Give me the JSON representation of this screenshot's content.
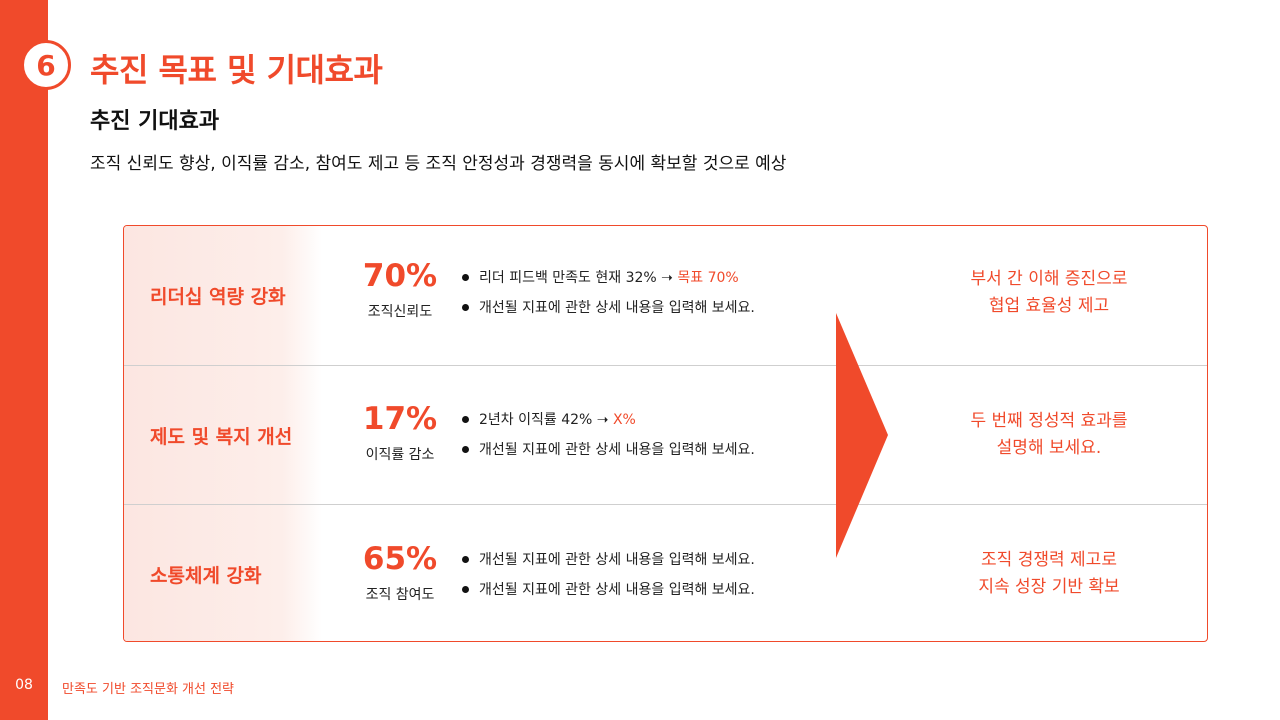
{
  "section": {
    "number": "6",
    "title": "추진 목표 및 기대효과"
  },
  "subtitle": "추진 기대효과",
  "summary": "조직 신뢰도 향상, 이직률 감소, 참여도 제고 등 조직 안정성과 경쟁력을 동시에 확보할 것으로 예상",
  "rows": [
    {
      "label": "리더십 역량 강화",
      "metric_value": "70%",
      "metric_caption": "조직신뢰도",
      "bullets": [
        {
          "text": "리더 피드백 만족도 현재 32% ➝ ",
          "highlight": "목표 70%"
        },
        {
          "text": "개선될 지표에 관한 상세 내용을 입력해 보세요.",
          "highlight": ""
        }
      ],
      "effect_lines": [
        "부서 간 이해 증진으로",
        "협업 효율성 제고"
      ]
    },
    {
      "label": "제도 및 복지 개선",
      "metric_value": "17%",
      "metric_caption": "이직률 감소",
      "bullets": [
        {
          "text": "2년차 이직률 42% ➝ ",
          "highlight": "X%"
        },
        {
          "text": "개선될 지표에 관한 상세 내용을 입력해 보세요.",
          "highlight": ""
        }
      ],
      "effect_lines": [
        "두 번째 정성적 효과를",
        "설명해 보세요."
      ]
    },
    {
      "label": "소통체계 강화",
      "metric_value": "65%",
      "metric_caption": "조직 참여도",
      "bullets": [
        {
          "text": "개선될 지표에 관한 상세 내용을 입력해 보세요.",
          "highlight": ""
        },
        {
          "text": "개선될 지표에 관한 상세 내용을 입력해 보세요.",
          "highlight": ""
        }
      ],
      "effect_lines": [
        "조직 경쟁력 제고로",
        "지속 성장 기반 확보"
      ]
    }
  ],
  "footer": {
    "page": "08",
    "doc_title": "만족도 기반 조직문화 개선 전략"
  },
  "colors": {
    "accent": "#f04a2b",
    "label_bg": "#fce6e1",
    "divider": "#cfcfcf"
  },
  "icons": {
    "arrow": "chevron-right-arrow-icon"
  }
}
